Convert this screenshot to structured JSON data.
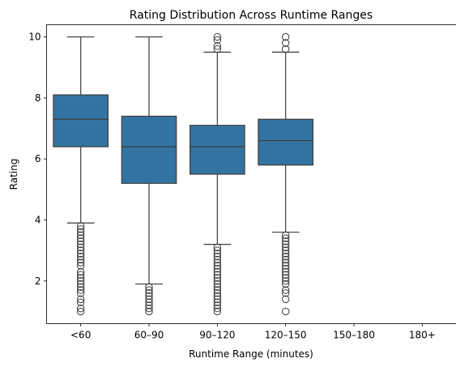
{
  "chart_data": {
    "type": "box",
    "title": "Rating Distribution Across Runtime Ranges",
    "xlabel": "Runtime Range (minutes)",
    "ylabel": "Rating",
    "ylim": [
      0.6,
      10.4
    ],
    "yticks": [
      2,
      4,
      6,
      8,
      10
    ],
    "grid": false,
    "box_color": "#3274a1",
    "line_color": "#3d3d3d",
    "categories": [
      "<60",
      "60–90",
      "90–120",
      "120–150",
      "150–180",
      "180+"
    ],
    "boxes": [
      {
        "category": "<60",
        "whisker_low": 3.9,
        "q1": 6.4,
        "median": 7.3,
        "q3": 8.1,
        "whisker_high": 10.0,
        "outliers": [
          1.0,
          1.1,
          1.3,
          1.4,
          1.6,
          1.7,
          1.8,
          1.9,
          2.0,
          2.1,
          2.2,
          2.3,
          2.5,
          2.6,
          2.7,
          2.8,
          2.9,
          3.0,
          3.1,
          3.2,
          3.3,
          3.4,
          3.5,
          3.6,
          3.7,
          3.8
        ]
      },
      {
        "category": "60–90",
        "whisker_low": 1.9,
        "q1": 5.2,
        "median": 6.4,
        "q3": 7.4,
        "whisker_high": 10.0,
        "outliers": [
          1.0,
          1.1,
          1.2,
          1.3,
          1.4,
          1.5,
          1.6,
          1.7,
          1.8
        ]
      },
      {
        "category": "90–120",
        "whisker_low": 3.2,
        "q1": 5.5,
        "median": 6.4,
        "q3": 7.1,
        "whisker_high": 9.5,
        "outliers": [
          1.0,
          1.1,
          1.2,
          1.3,
          1.4,
          1.5,
          1.6,
          1.7,
          1.8,
          1.9,
          2.0,
          2.1,
          2.2,
          2.3,
          2.4,
          2.5,
          2.6,
          2.7,
          2.8,
          2.9,
          3.0,
          3.1,
          9.6,
          9.7,
          9.9,
          10.0
        ]
      },
      {
        "category": "120–150",
        "whisker_low": 3.6,
        "q1": 5.8,
        "median": 6.6,
        "q3": 7.3,
        "whisker_high": 9.5,
        "outliers": [
          1.0,
          1.4,
          1.6,
          1.7,
          1.9,
          2.0,
          2.1,
          2.2,
          2.3,
          2.4,
          2.5,
          2.6,
          2.7,
          2.8,
          2.9,
          3.0,
          3.1,
          3.2,
          3.3,
          3.4,
          3.5,
          9.6,
          9.8,
          10.0
        ]
      }
    ]
  }
}
